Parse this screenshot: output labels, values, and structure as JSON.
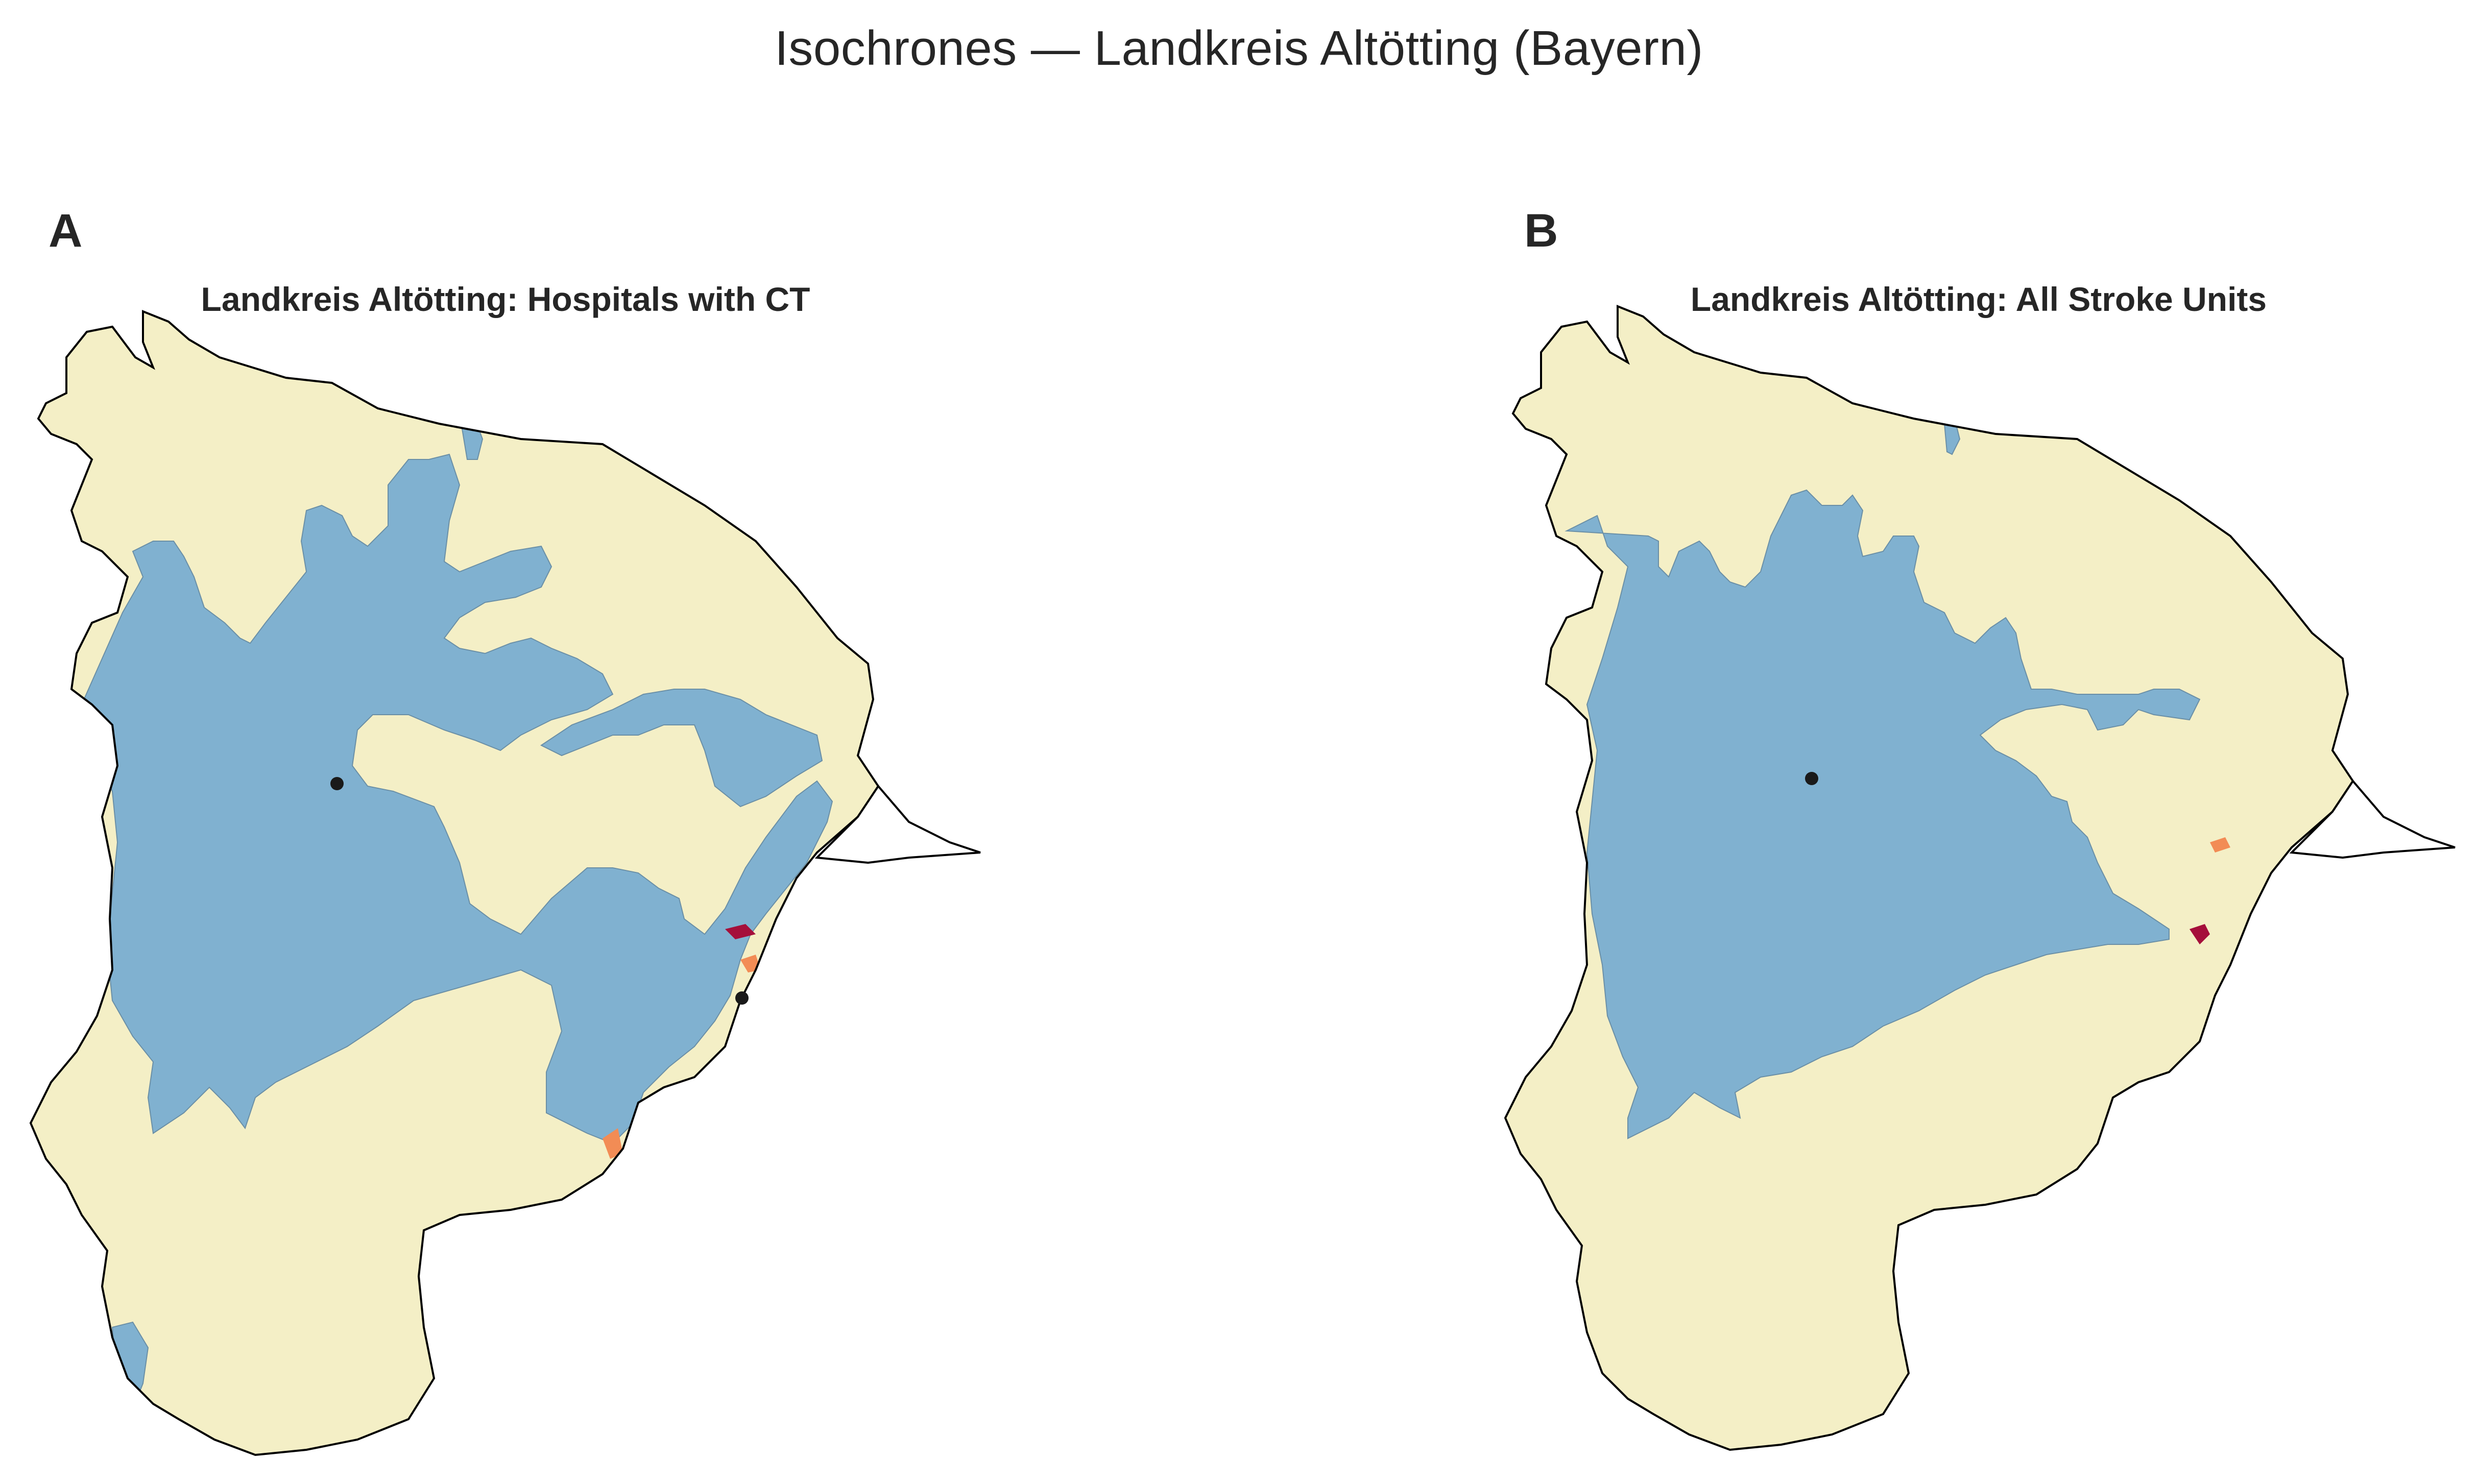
{
  "figure": {
    "title": "Isochrones — Landkreis Altötting (Bayern)"
  },
  "colors": {
    "background": "#ffffff",
    "zone_near": "#80b1d0",
    "zone_mid": "#f4efc6",
    "zone_far": "#f28c55",
    "zone_farthest": "#a50f3b",
    "boundary": "#000000",
    "hospital_marker": "#1a1a1a"
  },
  "panels": [
    {
      "letter": "A",
      "title": "Landkreis Altötting: Hospitals with CT",
      "hospital_count": 2
    },
    {
      "letter": "B",
      "title": "Landkreis Altötting: All Stroke Units",
      "hospital_count": 1
    }
  ]
}
